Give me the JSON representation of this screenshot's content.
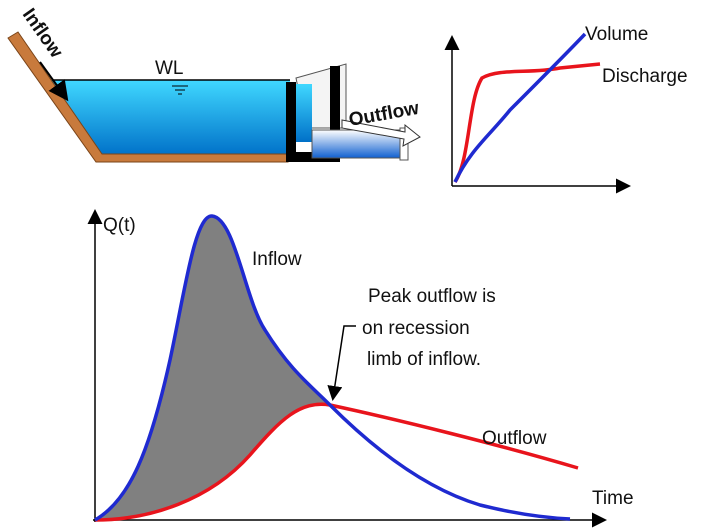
{
  "reservoir": {
    "inflow_label": "Inflow",
    "water_level_label": "WL",
    "outflow_label": "Outflow"
  },
  "storage_chart": {
    "volume_label": "Volume",
    "discharge_label": "Discharge"
  },
  "hydrograph": {
    "y_axis_label": "Q(t)",
    "x_axis_label": "Time",
    "inflow_label": "Inflow",
    "outflow_label": "Outflow",
    "annotation": [
      "Peak outflow is",
      "on recession",
      "limb of inflow."
    ]
  }
}
